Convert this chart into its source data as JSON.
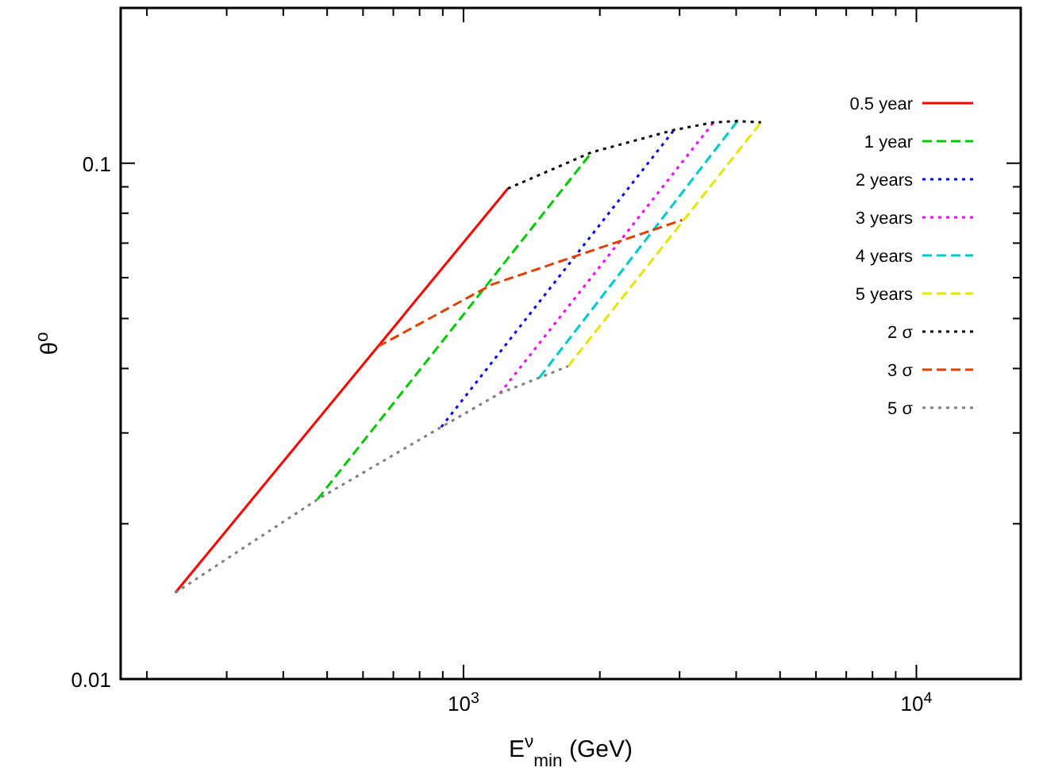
{
  "chart_data": {
    "type": "line",
    "xlabel": "E$^{ν}$$_{min}$ (GeV)",
    "ylabel": "θ$^{o}$",
    "log": "xy",
    "xlim": [
      175,
      17000
    ],
    "ylim": [
      0.01,
      0.2
    ],
    "xticks": [
      {
        "value": 200,
        "label": null
      },
      {
        "value": 300,
        "label": null
      },
      {
        "value": 400,
        "label": null
      },
      {
        "value": 500,
        "label": null
      },
      {
        "value": 600,
        "label": null
      },
      {
        "value": 700,
        "label": null
      },
      {
        "value": 800,
        "label": null
      },
      {
        "value": 900,
        "label": null
      },
      {
        "value": 1000,
        "label": "10$^{3}$"
      },
      {
        "value": 2000,
        "label": null
      },
      {
        "value": 3000,
        "label": null
      },
      {
        "value": 4000,
        "label": null
      },
      {
        "value": 5000,
        "label": null
      },
      {
        "value": 6000,
        "label": null
      },
      {
        "value": 7000,
        "label": null
      },
      {
        "value": 8000,
        "label": null
      },
      {
        "value": 9000,
        "label": null
      },
      {
        "value": 10000,
        "label": "10$^{4}$"
      }
    ],
    "yticks": [
      0.01,
      {
        "value": 0.02,
        "label": null
      },
      {
        "value": 0.03,
        "label": null
      },
      {
        "value": 0.04,
        "label": null
      },
      {
        "value": 0.05,
        "label": null
      },
      {
        "value": 0.06,
        "label": null
      },
      {
        "value": 0.07,
        "label": null
      },
      {
        "value": 0.08,
        "label": null
      },
      {
        "value": 0.09,
        "label": null
      },
      0.1,
      {
        "value": 0.2,
        "label": null
      }
    ],
    "grid": false,
    "legend": "top right",
    "marker": "none",
    "series": [
      {
        "name": "0.5 year",
        "color": "#ff0000",
        "line_style": "solid",
        "x": [
          231,
          1253
        ],
        "values": [
          0.0147,
          0.0893
        ]
      },
      {
        "name": "1 year",
        "color": "#00cc00",
        "line_style": "dashed",
        "x": [
          476,
          1919
        ],
        "values": [
          0.0223,
          0.105
        ]
      },
      {
        "name": "2 years",
        "color": "#0000ff",
        "line_style": "dotted",
        "x": [
          893,
          2917
        ],
        "values": [
          0.0308,
          0.116
        ]
      },
      {
        "name": "3 years",
        "color": "#ff00ff",
        "line_style": "dotted",
        "x": [
          1203,
          3565
        ],
        "values": [
          0.0358,
          0.12
        ]
      },
      {
        "name": "4 years",
        "color": "#00cccc",
        "line_style": "dashed",
        "x": [
          1471,
          4025
        ],
        "values": [
          0.0384,
          0.1207
        ]
      },
      {
        "name": "5 years",
        "color": "#e6e600",
        "line_style": "dashed",
        "x": [
          1702,
          4538
        ],
        "values": [
          0.0404,
          0.12
        ]
      },
      {
        "name": "2 σ",
        "color": "#000000",
        "line_style": "dotted",
        "x": [
          1253,
          1919,
          2917,
          3565,
          4025,
          4538
        ],
        "values": [
          0.0893,
          0.105,
          0.116,
          0.12,
          0.1207,
          0.12
        ]
      },
      {
        "name": "3 σ",
        "color": "#e04000",
        "line_style": "dashed",
        "x": [
          647,
          1156,
          3040
        ],
        "values": [
          0.0441,
          0.0582,
          0.0776
        ]
      },
      {
        "name": "5 σ",
        "color": "#808080",
        "line_style": "dotted",
        "x": [
          231,
          476,
          893,
          1203,
          1471,
          1702
        ],
        "values": [
          0.0147,
          0.0223,
          0.0308,
          0.0358,
          0.0384,
          0.0404
        ]
      }
    ]
  }
}
